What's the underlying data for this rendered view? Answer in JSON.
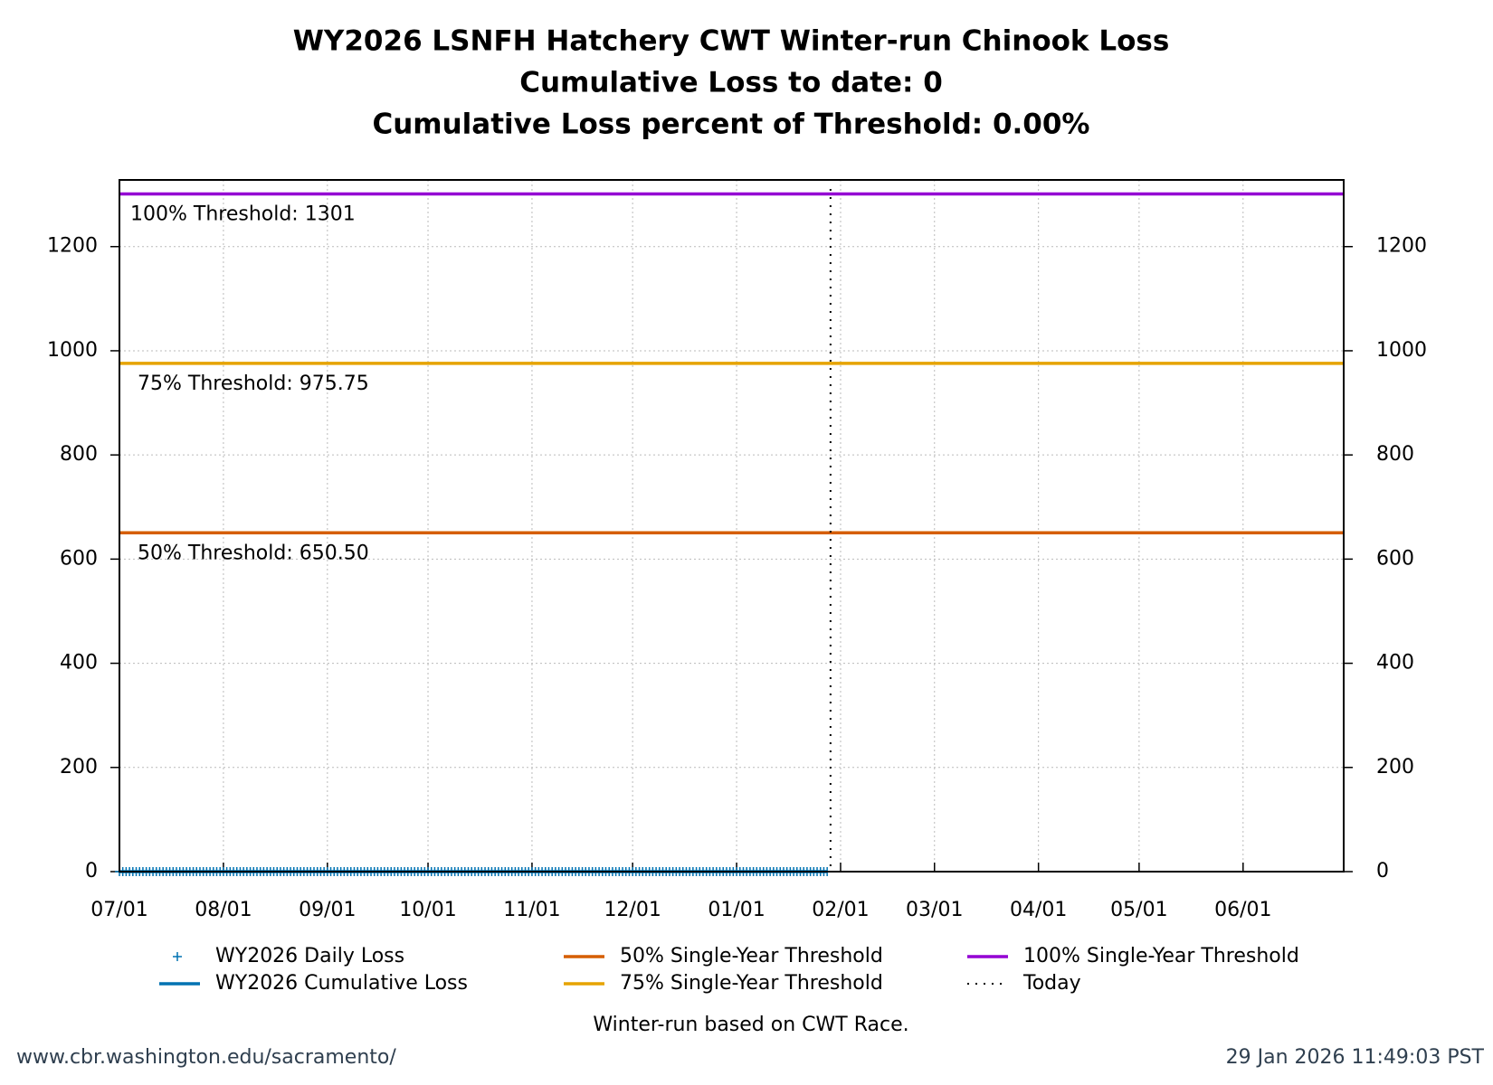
{
  "chart_data": {
    "type": "line",
    "title": "WY2026 LSNFH Hatchery CWT Winter-run Chinook Loss",
    "subtitle": [
      "Cumulative Loss to date: 0",
      "Cumulative Loss percent of Threshold: 0.00%"
    ],
    "xlim": [
      0,
      365
    ],
    "xticks": [
      {
        "value": 0,
        "label": "07/01"
      },
      {
        "value": 31,
        "label": "08/01"
      },
      {
        "value": 62,
        "label": "09/01"
      },
      {
        "value": 92,
        "label": "10/01"
      },
      {
        "value": 123,
        "label": "11/01"
      },
      {
        "value": 153,
        "label": "12/01"
      },
      {
        "value": 184,
        "label": "01/01"
      },
      {
        "value": 215,
        "label": "02/01"
      },
      {
        "value": 243,
        "label": "03/01"
      },
      {
        "value": 274,
        "label": "04/01"
      },
      {
        "value": 304,
        "label": "05/01"
      },
      {
        "value": 335,
        "label": "06/01"
      }
    ],
    "ylim": [
      0,
      1328
    ],
    "yticks": [
      0,
      200,
      400,
      600,
      800,
      1000,
      1200
    ],
    "grid": true,
    "x": [
      0,
      1,
      2,
      3,
      4,
      5,
      6,
      7,
      8,
      9,
      10,
      11,
      12,
      13,
      14,
      15,
      16,
      17,
      18,
      19,
      20,
      21,
      22,
      23,
      24,
      25,
      26,
      27,
      28,
      29,
      30,
      31,
      32,
      33,
      34,
      35,
      36,
      37,
      38,
      39,
      40,
      41,
      42,
      43,
      44,
      45,
      46,
      47,
      48,
      49,
      50,
      51,
      52,
      53,
      54,
      55,
      56,
      57,
      58,
      59,
      60,
      61,
      62,
      63,
      64,
      65,
      66,
      67,
      68,
      69,
      70,
      71,
      72,
      73,
      74,
      75,
      76,
      77,
      78,
      79,
      80,
      81,
      82,
      83,
      84,
      85,
      86,
      87,
      88,
      89,
      90,
      91,
      92,
      93,
      94,
      95,
      96,
      97,
      98,
      99,
      100,
      101,
      102,
      103,
      104,
      105,
      106,
      107,
      108,
      109,
      110,
      111,
      112,
      113,
      114,
      115,
      116,
      117,
      118,
      119,
      120,
      121,
      122,
      123,
      124,
      125,
      126,
      127,
      128,
      129,
      130,
      131,
      132,
      133,
      134,
      135,
      136,
      137,
      138,
      139,
      140,
      141,
      142,
      143,
      144,
      145,
      146,
      147,
      148,
      149,
      150,
      151,
      152,
      153,
      154,
      155,
      156,
      157,
      158,
      159,
      160,
      161,
      162,
      163,
      164,
      165,
      166,
      167,
      168,
      169,
      170,
      171,
      172,
      173,
      174,
      175,
      176,
      177,
      178,
      179,
      180,
      181,
      182,
      183,
      184,
      185,
      186,
      187,
      188,
      189,
      190,
      191,
      192,
      193,
      194,
      195,
      196,
      197,
      198,
      199,
      200,
      201,
      202,
      203,
      204,
      205,
      206,
      207,
      208,
      209,
      210,
      211
    ],
    "series": [
      {
        "name": "WY2026 Daily Loss",
        "color": "#0072b2",
        "marker": "+",
        "values": [
          0,
          0,
          0,
          0,
          0,
          0,
          0,
          0,
          0,
          0,
          0,
          0,
          0,
          0,
          0,
          0,
          0,
          0,
          0,
          0,
          0,
          0,
          0,
          0,
          0,
          0,
          0,
          0,
          0,
          0,
          0,
          0,
          0,
          0,
          0,
          0,
          0,
          0,
          0,
          0,
          0,
          0,
          0,
          0,
          0,
          0,
          0,
          0,
          0,
          0,
          0,
          0,
          0,
          0,
          0,
          0,
          0,
          0,
          0,
          0,
          0,
          0,
          0,
          0,
          0,
          0,
          0,
          0,
          0,
          0,
          0,
          0,
          0,
          0,
          0,
          0,
          0,
          0,
          0,
          0,
          0,
          0,
          0,
          0,
          0,
          0,
          0,
          0,
          0,
          0,
          0,
          0,
          0,
          0,
          0,
          0,
          0,
          0,
          0,
          0,
          0,
          0,
          0,
          0,
          0,
          0,
          0,
          0,
          0,
          0,
          0,
          0,
          0,
          0,
          0,
          0,
          0,
          0,
          0,
          0,
          0,
          0,
          0,
          0,
          0,
          0,
          0,
          0,
          0,
          0,
          0,
          0,
          0,
          0,
          0,
          0,
          0,
          0,
          0,
          0,
          0,
          0,
          0,
          0,
          0,
          0,
          0,
          0,
          0,
          0,
          0,
          0,
          0,
          0,
          0,
          0,
          0,
          0,
          0,
          0,
          0,
          0,
          0,
          0,
          0,
          0,
          0,
          0,
          0,
          0,
          0,
          0,
          0,
          0,
          0,
          0,
          0,
          0,
          0,
          0,
          0,
          0,
          0,
          0,
          0,
          0,
          0,
          0,
          0,
          0,
          0,
          0,
          0,
          0,
          0,
          0,
          0,
          0,
          0,
          0,
          0,
          0,
          0,
          0,
          0,
          0,
          0,
          0,
          0,
          0,
          0,
          0
        ]
      },
      {
        "name": "WY2026 Cumulative Loss",
        "color": "#0072b2",
        "values": [
          0,
          0,
          0,
          0,
          0,
          0,
          0,
          0,
          0,
          0,
          0,
          0,
          0,
          0,
          0,
          0,
          0,
          0,
          0,
          0,
          0,
          0,
          0,
          0,
          0,
          0,
          0,
          0,
          0,
          0,
          0,
          0,
          0,
          0,
          0,
          0,
          0,
          0,
          0,
          0,
          0,
          0,
          0,
          0,
          0,
          0,
          0,
          0,
          0,
          0,
          0,
          0,
          0,
          0,
          0,
          0,
          0,
          0,
          0,
          0,
          0,
          0,
          0,
          0,
          0,
          0,
          0,
          0,
          0,
          0,
          0,
          0,
          0,
          0,
          0,
          0,
          0,
          0,
          0,
          0,
          0,
          0,
          0,
          0,
          0,
          0,
          0,
          0,
          0,
          0,
          0,
          0,
          0,
          0,
          0,
          0,
          0,
          0,
          0,
          0,
          0,
          0,
          0,
          0,
          0,
          0,
          0,
          0,
          0,
          0,
          0,
          0,
          0,
          0,
          0,
          0,
          0,
          0,
          0,
          0,
          0,
          0,
          0,
          0,
          0,
          0,
          0,
          0,
          0,
          0,
          0,
          0,
          0,
          0,
          0,
          0,
          0,
          0,
          0,
          0,
          0,
          0,
          0,
          0,
          0,
          0,
          0,
          0,
          0,
          0,
          0,
          0,
          0,
          0,
          0,
          0,
          0,
          0,
          0,
          0,
          0,
          0,
          0,
          0,
          0,
          0,
          0,
          0,
          0,
          0,
          0,
          0,
          0,
          0,
          0,
          0,
          0,
          0,
          0,
          0,
          0,
          0,
          0,
          0,
          0,
          0,
          0,
          0,
          0,
          0,
          0,
          0,
          0,
          0,
          0,
          0,
          0,
          0,
          0,
          0,
          0,
          0,
          0,
          0,
          0,
          0,
          0,
          0,
          0,
          0,
          0,
          0
        ]
      },
      {
        "name": "50% Single-Year Threshold",
        "color": "#d55e00",
        "x": [
          0,
          365
        ],
        "values": [
          650.5,
          650.5
        ],
        "label": "50% Threshold: 650.50"
      },
      {
        "name": "75% Single-Year Threshold",
        "color": "#e6a300",
        "x": [
          0,
          365
        ],
        "values": [
          975.75,
          975.75
        ],
        "label": "75% Threshold: 975.75"
      },
      {
        "name": "100% Single-Year Threshold",
        "color": "#9400d3",
        "x": [
          0,
          365
        ],
        "values": [
          1301,
          1301
        ],
        "label": "100% Threshold: 1301"
      }
    ],
    "today": {
      "name": "Today",
      "x": 212,
      "color": "#000000"
    },
    "note": "Winter-run based on CWT Race.",
    "source": "www.cbr.washington.edu/sacramento/",
    "timestamp": "29 Jan 2026 11:49:03 PST"
  }
}
